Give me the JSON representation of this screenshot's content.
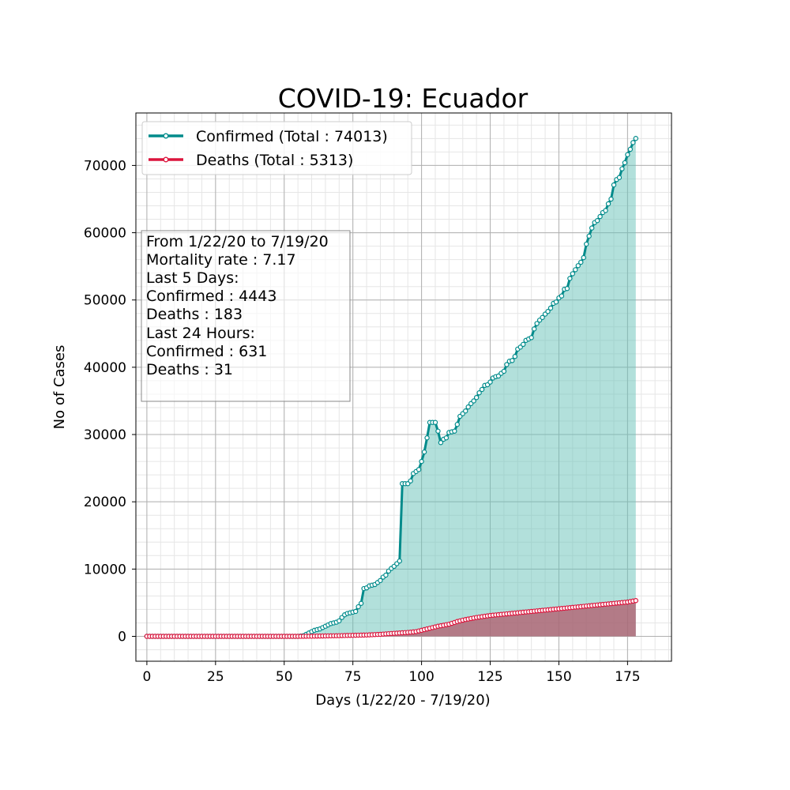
{
  "chart_data": {
    "type": "line",
    "title": "COVID-19: Ecuador",
    "xlabel": "Days (1/22/20 - 7/19/20)",
    "ylabel": "No of Cases",
    "xlim": [
      -4,
      191
    ],
    "ylim": [
      -3700,
      77800
    ],
    "x_ticks": [
      0,
      25,
      50,
      75,
      100,
      125,
      150,
      175
    ],
    "y_ticks": [
      0,
      10000,
      20000,
      30000,
      40000,
      50000,
      60000,
      70000
    ],
    "grid": true,
    "minor_grid": true,
    "legend_position": "top-left",
    "series": [
      {
        "name": "Confirmed (Total : 74013)",
        "color": "#008b8b",
        "fill_color": "#66c2b8",
        "points": [
          [
            0,
            0
          ],
          [
            40,
            0
          ],
          [
            55,
            0
          ],
          [
            57,
            100
          ],
          [
            58,
            300
          ],
          [
            59,
            500
          ],
          [
            60,
            700
          ],
          [
            61,
            900
          ],
          [
            62,
            1000
          ],
          [
            63,
            1100
          ],
          [
            64,
            1300
          ],
          [
            65,
            1500
          ],
          [
            66,
            1700
          ],
          [
            67,
            1900
          ],
          [
            68,
            2000
          ],
          [
            69,
            2100
          ],
          [
            70,
            2300
          ],
          [
            71,
            2800
          ],
          [
            72,
            3200
          ],
          [
            73,
            3400
          ],
          [
            74,
            3500
          ],
          [
            75,
            3600
          ],
          [
            76,
            3700
          ],
          [
            77,
            4400
          ],
          [
            78,
            4900
          ],
          [
            79,
            7100
          ],
          [
            80,
            7200
          ],
          [
            81,
            7500
          ],
          [
            82,
            7600
          ],
          [
            83,
            7700
          ],
          [
            84,
            8000
          ],
          [
            85,
            8300
          ],
          [
            86,
            8800
          ],
          [
            87,
            9100
          ],
          [
            88,
            9700
          ],
          [
            89,
            10100
          ],
          [
            90,
            10400
          ],
          [
            91,
            10800
          ],
          [
            92,
            11200
          ],
          [
            93,
            22700
          ],
          [
            94,
            22700
          ],
          [
            95,
            22700
          ],
          [
            96,
            23100
          ],
          [
            97,
            24200
          ],
          [
            98,
            24500
          ],
          [
            99,
            24800
          ],
          [
            100,
            26000
          ],
          [
            101,
            27400
          ],
          [
            102,
            29500
          ],
          [
            103,
            31800
          ],
          [
            104,
            31800
          ],
          [
            105,
            31800
          ],
          [
            106,
            30500
          ],
          [
            107,
            28800
          ],
          [
            108,
            29300
          ],
          [
            109,
            29500
          ],
          [
            110,
            30300
          ],
          [
            111,
            30400
          ],
          [
            112,
            30500
          ],
          [
            113,
            31500
          ],
          [
            114,
            32700
          ],
          [
            115,
            33100
          ],
          [
            116,
            33500
          ],
          [
            117,
            34100
          ],
          [
            118,
            34600
          ],
          [
            119,
            35000
          ],
          [
            120,
            35500
          ],
          [
            121,
            36200
          ],
          [
            122,
            36700
          ],
          [
            123,
            37300
          ],
          [
            124,
            37400
          ],
          [
            125,
            37800
          ],
          [
            126,
            38400
          ],
          [
            127,
            38600
          ],
          [
            128,
            38700
          ],
          [
            129,
            39100
          ],
          [
            130,
            39400
          ],
          [
            131,
            40400
          ],
          [
            132,
            40900
          ],
          [
            133,
            41000
          ],
          [
            134,
            41600
          ],
          [
            135,
            42700
          ],
          [
            136,
            43000
          ],
          [
            137,
            43400
          ],
          [
            138,
            44000
          ],
          [
            139,
            44200
          ],
          [
            140,
            44400
          ],
          [
            141,
            45700
          ],
          [
            142,
            46500
          ],
          [
            143,
            47000
          ],
          [
            144,
            47400
          ],
          [
            145,
            47900
          ],
          [
            146,
            48300
          ],
          [
            147,
            48800
          ],
          [
            148,
            49500
          ],
          [
            149,
            49700
          ],
          [
            150,
            50300
          ],
          [
            151,
            50600
          ],
          [
            152,
            51600
          ],
          [
            153,
            51700
          ],
          [
            154,
            53200
          ],
          [
            155,
            53900
          ],
          [
            156,
            54500
          ],
          [
            157,
            55100
          ],
          [
            158,
            55600
          ],
          [
            159,
            56300
          ],
          [
            160,
            58300
          ],
          [
            161,
            59500
          ],
          [
            162,
            60700
          ],
          [
            163,
            61500
          ],
          [
            164,
            61800
          ],
          [
            165,
            62400
          ],
          [
            166,
            63000
          ],
          [
            167,
            63300
          ],
          [
            168,
            64300
          ],
          [
            169,
            65000
          ],
          [
            170,
            67100
          ],
          [
            171,
            67900
          ],
          [
            172,
            68200
          ],
          [
            173,
            69500
          ],
          [
            174,
            70400
          ],
          [
            175,
            71600
          ],
          [
            176,
            72400
          ],
          [
            177,
            73400
          ],
          [
            178,
            74013
          ]
        ]
      },
      {
        "name": "Deaths (Total : 5313)",
        "color": "#dc143c",
        "fill_color": "#b35a6b",
        "points": [
          [
            0,
            0
          ],
          [
            40,
            0
          ],
          [
            55,
            0
          ],
          [
            60,
            20
          ],
          [
            65,
            60
          ],
          [
            70,
            100
          ],
          [
            75,
            150
          ],
          [
            80,
            200
          ],
          [
            85,
            300
          ],
          [
            90,
            450
          ],
          [
            95,
            580
          ],
          [
            98,
            700
          ],
          [
            100,
            900
          ],
          [
            103,
            1200
          ],
          [
            106,
            1500
          ],
          [
            110,
            1800
          ],
          [
            113,
            2200
          ],
          [
            116,
            2500
          ],
          [
            120,
            2800
          ],
          [
            125,
            3100
          ],
          [
            130,
            3300
          ],
          [
            135,
            3500
          ],
          [
            140,
            3700
          ],
          [
            145,
            3900
          ],
          [
            150,
            4100
          ],
          [
            155,
            4300
          ],
          [
            160,
            4500
          ],
          [
            165,
            4700
          ],
          [
            170,
            4900
          ],
          [
            175,
            5100
          ],
          [
            178,
            5313
          ]
        ]
      }
    ],
    "info_box": [
      "From 1/22/20 to 7/19/20",
      "Mortality rate : 7.17",
      "Last 5 Days:",
      "Confirmed : 4443",
      "Deaths : 183",
      "Last 24 Hours:",
      "Confirmed : 631",
      "Deaths : 31"
    ]
  }
}
